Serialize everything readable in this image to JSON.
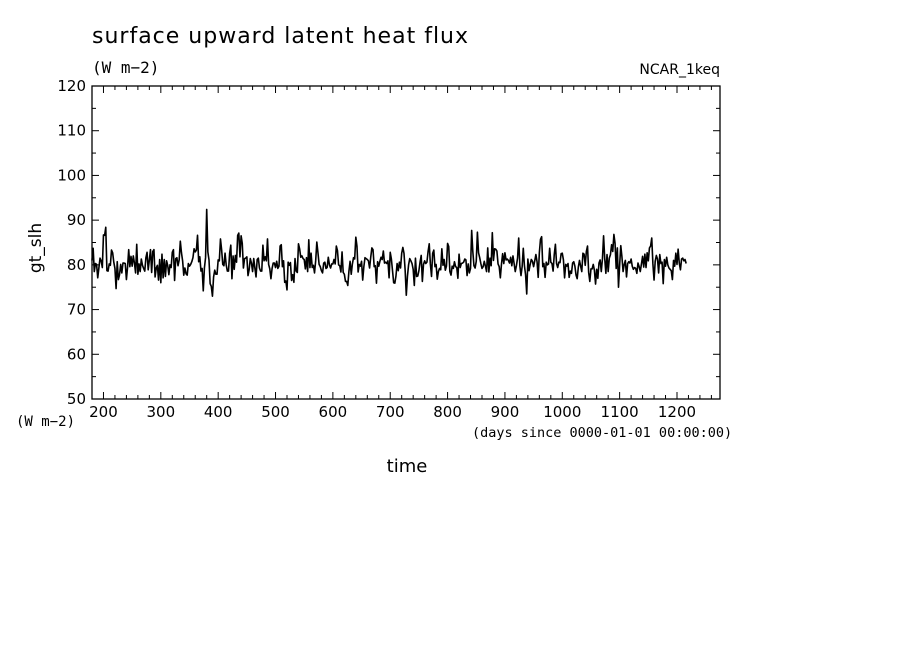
{
  "chart_data": {
    "type": "line",
    "title": "surface upward latent heat flux",
    "units": "(W m−2)",
    "dataset": "NCAR_1keq",
    "ylabel": "gt_slh",
    "yunits": "(W m−2)",
    "xlabel": "time",
    "xunits": "(days since 0000-01-01 00:00:00)",
    "xlim": [
      180,
      1275
    ],
    "ylim": [
      50,
      120
    ],
    "xticks": [
      200,
      300,
      400,
      500,
      600,
      700,
      800,
      900,
      1000,
      1100,
      1200
    ],
    "yticks": [
      50,
      60,
      70,
      80,
      90,
      100,
      110,
      120
    ],
    "grid": false,
    "series": [
      {
        "x_start": 180,
        "x_step": 2,
        "values": [
          81,
          83.7,
          78.5,
          80.3,
          80.1,
          77.1,
          79.3,
          81.5,
          80.9,
          79.4,
          86.7,
          86.6,
          88.4,
          78.7,
          78.6,
          80.2,
          79.9,
          83.3,
          82.7,
          80.6,
          79.2,
          74.7,
          80.7,
          76.7,
          77.8,
          80.1,
          78.2,
          80.4,
          80.4,
          80.3,
          76.7,
          79.5,
          83.4,
          79.6,
          81.9,
          79.7,
          82,
          80.4,
          78.2,
          84.6,
          77.9,
          80.2,
          78.5,
          81.3,
          79.9,
          79.2,
          78.6,
          81.6,
          82.8,
          78.9,
          81.1,
          83.4,
          78.3,
          83,
          83.4,
          77.3,
          79.3,
          79.9,
          76.6,
          81.2,
          76,
          82.4,
          77.1,
          81.2,
          77.4,
          80.9,
          79.9,
          77.8,
          80,
          79.4,
          82.8,
          83.4,
          76.5,
          81.4,
          81.6,
          79.8,
          81.1,
          85.3,
          82.7,
          80.9,
          77.7,
          79.3,
          78,
          77.7,
          80.3,
          79.7,
          80.1,
          80.7,
          81.6,
          83.6,
          82.9,
          83.3,
          86.6,
          80.7,
          81.8,
          78.6,
          79.2,
          74.2,
          79.3,
          81.6,
          92.4,
          82.9,
          81.1,
          75.8,
          75.2,
          73,
          77.3,
          78.8,
          77.9,
          77.9,
          81.1,
          80.9,
          85.8,
          83.4,
          80.1,
          79.8,
          82.6,
          80,
          78.6,
          78.6,
          82.6,
          84.4,
          76.9,
          82,
          79,
          82.1,
          80.6,
          86.6,
          87.1,
          81.8,
          86.5,
          84.8,
          79.3,
          81.4,
          81.5,
          81.8,
          77.6,
          78.9,
          81.4,
          80.4,
          78.5,
          81.4,
          79.3,
          77.3,
          81.2,
          81.5,
          79.3,
          78.6,
          78.6,
          84.4,
          80.9,
          81.8,
          80.9,
          85.8,
          80.1,
          79.1,
          76.9,
          79.2,
          80.4,
          80.4,
          79.4,
          80.8,
          79.2,
          79.7,
          84.2,
          84.5,
          79.6,
          80.9,
          76.1,
          76.4,
          74.4,
          80.6,
          79.9,
          80.5,
          76.5,
          77.8,
          76.1,
          81.4,
          78.6,
          78.3,
          84.7,
          83.6,
          81.7,
          82,
          81.4,
          81.2,
          79.1,
          81.6,
          78.5,
          85.6,
          79.4,
          82.6,
          79.4,
          79.9,
          78.2,
          80.9,
          85.1,
          82.7,
          80.1,
          79.6,
          78.7,
          78.2,
          80.4,
          80.6,
          79.2,
          79.4,
          81.7,
          80,
          79.3,
          80.2,
          80.2,
          81.2,
          80.2,
          84.2,
          83.2,
          80,
          79.8,
          78.4,
          82.9,
          78.3,
          77.9,
          76.3,
          76.3,
          75.4,
          78.6,
          80.8,
          77.9,
          80.2,
          81.6,
          81.3,
          86.2,
          84.2,
          78.4,
          80.1,
          79.7,
          80.8,
          76.6,
          79.6,
          81.6,
          81.4,
          81.2,
          80.9,
          79.3,
          81.7,
          83.8,
          83.4,
          79.6,
          79.8,
          75.9,
          80.7,
          79.7,
          80.8,
          81.7,
          81.2,
          83.1,
          80.4,
          80.6,
          80.3,
          80.9,
          77.1,
          82.8,
          81.3,
          78.7,
          76,
          75.9,
          77.5,
          80.3,
          78.7,
          80.6,
          79.3,
          82.6,
          83.9,
          82.6,
          78.8,
          73.2,
          77.4,
          80,
          81.4,
          80.9,
          80.3,
          79,
          75.4,
          81.5,
          77.4,
          77.5,
          78.7,
          80.6,
          82.1,
          76.3,
          80.1,
          80.9,
          80.3,
          80.6,
          83,
          84.7,
          80.2,
          77.4,
          82.6,
          83.3,
          79.6,
          80.1,
          76.8,
          78.5,
          79.2,
          78.9,
          83.6,
          79.9,
          81.2,
          78.8,
          79.7,
          84.8,
          84.1,
          78.5,
          77.7,
          79.7,
          79.2,
          80.7,
          79.6,
          79.4,
          77,
          82.4,
          79.4,
          80.3,
          80.4,
          80.6,
          81.3,
          81.1,
          77.6,
          80.2,
          78.2,
          79.2,
          87.7,
          83,
          79.8,
          79.3,
          80.8,
          87.3,
          82.7,
          81.6,
          80.3,
          79.2,
          79.6,
          80.8,
          79.7,
          78.5,
          83.8,
          78.4,
          81.5,
          79.8,
          87.2,
          81,
          83.6,
          83.5,
          83.1,
          80.2,
          79.6,
          77.1,
          80.2,
          82.5,
          80.3,
          82.7,
          81.1,
          81.3,
          81,
          80.4,
          81.7,
          79.8,
          82,
          80.3,
          78.5,
          79.8,
          81.5,
          86,
          79.8,
          77.6,
          79.6,
          83.7,
          79.8,
          77.8,
          73.5,
          81.3,
          78.7,
          80.1,
          81.2,
          80.8,
          79.6,
          80.9,
          82.3,
          80.7,
          77.2,
          82.7,
          85.7,
          86.3,
          79.6,
          80.3,
          77.2,
          80.6,
          80,
          80.2,
          83.7,
          80.6,
          80.3,
          78.6,
          82.3,
          84.6,
          80.3,
          79.4,
          80.6,
          80.5,
          82.5,
          82.6,
          81.1,
          77.1,
          80.1,
          79.7,
          80.3,
          77.2,
          78.6,
          78.1,
          80.4,
          80.7,
          79.7,
          77.7,
          76.9,
          79.5,
          81,
          79.7,
          78.5,
          82.6,
          82.4,
          79.9,
          83,
          84.2,
          78.3,
          76.3,
          79.1,
          79.1,
          80.1,
          78.8,
          75.7,
          79,
          77,
          80.4,
          81.1,
          78.5,
          81.3,
          86.5,
          81.4,
          78.1,
          82.3,
          78.5,
          81.5,
          82.3,
          84.5,
          83,
          86.8,
          84.8,
          79.2,
          83.8,
          75,
          79.9,
          84.3,
          81.8,
          78.5,
          80.1,
          81,
          77.3,
          80.3,
          80.7,
          80.4,
          81.3,
          79.7,
          79,
          79.4,
          79.2,
          78.1,
          80.4,
          79.6,
          78.5,
          80.2,
          81.9,
          79.5,
          82.4,
          79.4,
          82.7,
          80.9,
          83.8,
          84.2,
          86,
          80.2,
          76.6,
          80.8,
          82.1,
          81.3,
          78.2,
          82.3,
          80.3,
          80.6,
          75.8,
          81.2,
          79.7,
          81.7,
          80,
          79.3,
          79,
          78.7,
          76.7,
          81,
          79.7,
          82.6,
          80.1,
          83.5,
          80.4,
          78.9,
          81.3,
          81.5,
          80.9,
          81.2,
          80.3
        ]
      }
    ]
  }
}
